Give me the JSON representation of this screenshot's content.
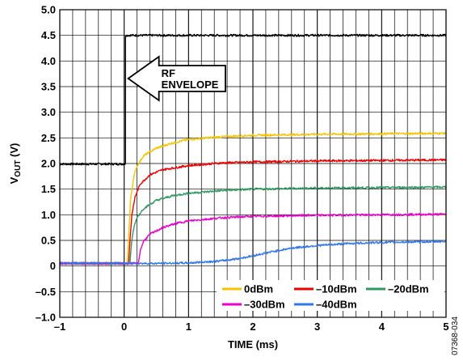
{
  "chart_data": {
    "type": "line",
    "xlabel": "TIME (ms)",
    "ylabel_main": "V",
    "ylabel_sub": "OUT",
    "ylabel_unit": " (V)",
    "xlim": [
      -1,
      5
    ],
    "ylim": [
      -1.0,
      5.0
    ],
    "grid": true,
    "x_ticks": [
      -1,
      0,
      1,
      2,
      3,
      4,
      5
    ],
    "x_tick_labels": [
      "–1",
      "0",
      "1",
      "2",
      "3",
      "4",
      "5"
    ],
    "y_ticks": [
      -1.0,
      -0.5,
      0,
      0.5,
      1.0,
      1.5,
      2.0,
      2.5,
      3.0,
      3.5,
      4.0,
      4.5,
      5.0
    ],
    "y_tick_labels": [
      "–1.0",
      "–0.5",
      "0",
      "0.5",
      "1.0",
      "1.5",
      "2.0",
      "2.5",
      "3.0",
      "3.5",
      "4.0",
      "4.5",
      "5.0"
    ],
    "annotation": {
      "lines": [
        "RF",
        "ENVELOPE"
      ],
      "arrow_direction": "left",
      "points_to_x": 0
    },
    "legend_placement": "bottom-right",
    "figure_id": "07368-034",
    "series": [
      {
        "name": "RF envelope",
        "show_in_legend": false,
        "color": "#000000",
        "points": [
          [
            -1,
            1.99
          ],
          [
            0.02,
            1.99
          ],
          [
            0.02,
            4.5
          ],
          [
            5,
            4.5
          ]
        ]
      },
      {
        "name": "0dBm",
        "show_in_legend": true,
        "color": "#f5c400",
        "points": [
          [
            -1,
            0.06
          ],
          [
            0.05,
            0.05
          ],
          [
            0.07,
            0.6
          ],
          [
            0.1,
            1.3
          ],
          [
            0.15,
            1.75
          ],
          [
            0.2,
            1.95
          ],
          [
            0.3,
            2.15
          ],
          [
            0.5,
            2.3
          ],
          [
            0.75,
            2.4
          ],
          [
            1.0,
            2.47
          ],
          [
            1.5,
            2.52
          ],
          [
            2.0,
            2.55
          ],
          [
            3.0,
            2.57
          ],
          [
            4.0,
            2.58
          ],
          [
            5,
            2.59
          ]
        ]
      },
      {
        "name": "–10dBm",
        "show_in_legend": true,
        "color": "#ee0000",
        "points": [
          [
            -1,
            0.05
          ],
          [
            0.07,
            0.05
          ],
          [
            0.09,
            0.5
          ],
          [
            0.12,
            1.0
          ],
          [
            0.17,
            1.35
          ],
          [
            0.25,
            1.6
          ],
          [
            0.4,
            1.78
          ],
          [
            0.6,
            1.88
          ],
          [
            1.0,
            1.96
          ],
          [
            1.5,
            2.01
          ],
          [
            2.0,
            2.03
          ],
          [
            3.0,
            2.05
          ],
          [
            4.0,
            2.06
          ],
          [
            5,
            2.07
          ]
        ]
      },
      {
        "name": "–20dBm",
        "show_in_legend": true,
        "color": "#2e9960",
        "points": [
          [
            -1,
            0.05
          ],
          [
            0.09,
            0.05
          ],
          [
            0.11,
            0.4
          ],
          [
            0.15,
            0.75
          ],
          [
            0.2,
            0.95
          ],
          [
            0.3,
            1.12
          ],
          [
            0.5,
            1.28
          ],
          [
            0.75,
            1.37
          ],
          [
            1.0,
            1.42
          ],
          [
            1.5,
            1.47
          ],
          [
            2.0,
            1.5
          ],
          [
            3.0,
            1.52
          ],
          [
            4.0,
            1.53
          ],
          [
            5,
            1.54
          ]
        ]
      },
      {
        "name": "–30dBm",
        "show_in_legend": true,
        "color": "#ee00cc",
        "points": [
          [
            -1,
            0.05
          ],
          [
            0.22,
            0.05
          ],
          [
            0.25,
            0.3
          ],
          [
            0.3,
            0.48
          ],
          [
            0.4,
            0.62
          ],
          [
            0.6,
            0.75
          ],
          [
            0.8,
            0.83
          ],
          [
            1.0,
            0.88
          ],
          [
            1.5,
            0.94
          ],
          [
            2.0,
            0.97
          ],
          [
            3.0,
            0.99
          ],
          [
            4.0,
            1.0
          ],
          [
            5,
            1.01
          ]
        ]
      },
      {
        "name": "–40dBm",
        "show_in_legend": true,
        "color": "#3377ee",
        "points": [
          [
            -1,
            0.06
          ],
          [
            0.5,
            0.05
          ],
          [
            1.0,
            0.06
          ],
          [
            1.5,
            0.1
          ],
          [
            1.8,
            0.15
          ],
          [
            2.0,
            0.2
          ],
          [
            2.3,
            0.28
          ],
          [
            2.6,
            0.35
          ],
          [
            3.0,
            0.4
          ],
          [
            3.5,
            0.44
          ],
          [
            4.0,
            0.46
          ],
          [
            4.5,
            0.47
          ],
          [
            5,
            0.48
          ]
        ]
      }
    ]
  }
}
